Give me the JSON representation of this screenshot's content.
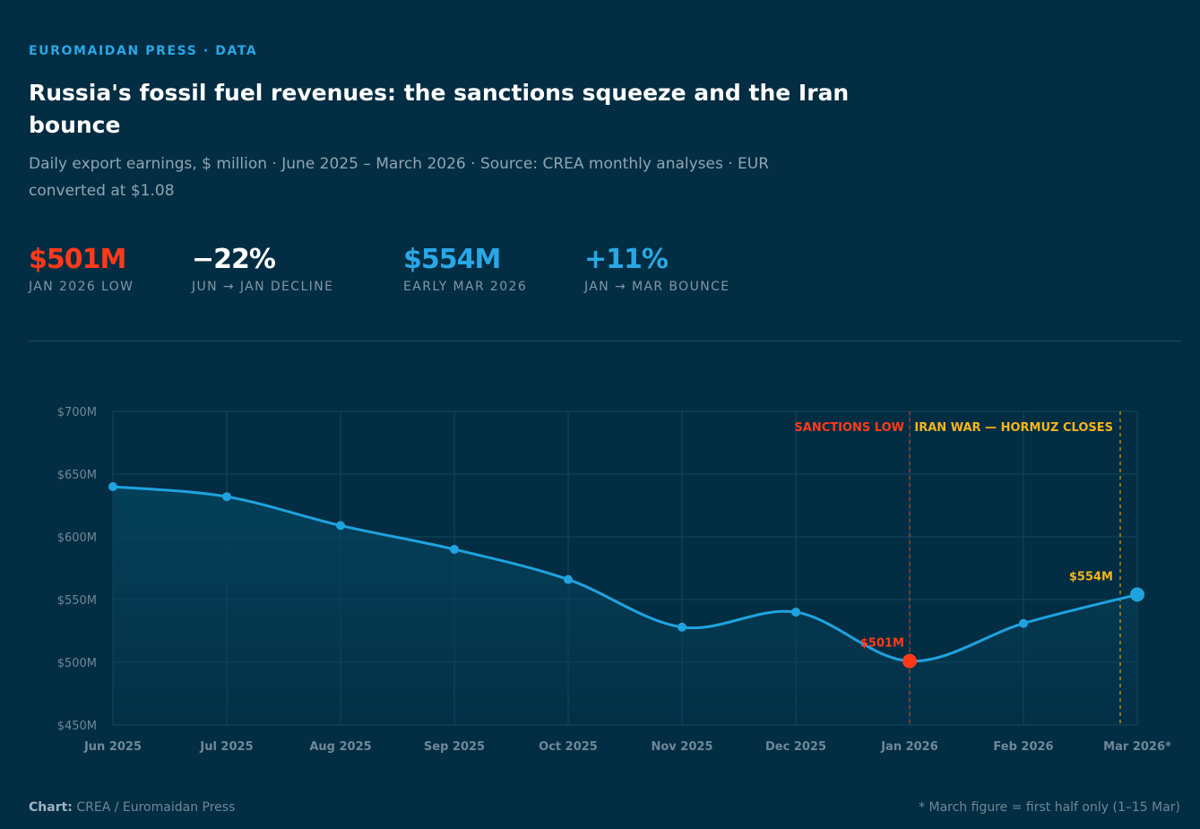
{
  "header": {
    "eyebrow": "EUROMAIDAN PRESS · DATA",
    "title": "Russia's fossil fuel revenues: the sanctions squeeze and the Iran bounce",
    "subtitle": "Daily export earnings, $ million · June 2025 – March 2026 · Source: CREA monthly analyses · EUR converted at $1.08"
  },
  "stats": [
    {
      "value": "$501M",
      "label": "JAN 2026 LOW",
      "color": "#ff3a1a"
    },
    {
      "value": "−22%",
      "label": "JUN → JAN DECLINE",
      "color": "#ffffff"
    },
    {
      "value": "$554M",
      "label": "EARLY MAR 2026",
      "color": "#2aa7e6"
    },
    {
      "value": "+11%",
      "label": "JAN → MAR BOUNCE",
      "color": "#2aa7e6"
    }
  ],
  "chart_data": {
    "type": "line",
    "categories": [
      "Jun 2025",
      "Jul 2025",
      "Aug 2025",
      "Sep 2025",
      "Oct 2025",
      "Nov 2025",
      "Dec 2025",
      "Jan 2026",
      "Feb 2026",
      "Mar 2026*"
    ],
    "series": [
      {
        "values": [
          640,
          632,
          609,
          590,
          566,
          528,
          540,
          501,
          531,
          554
        ]
      }
    ],
    "ylim": [
      450,
      700
    ],
    "yticks": [
      450,
      500,
      550,
      600,
      650,
      700
    ],
    "ytick_labels": [
      "$450M",
      "$500M",
      "$550M",
      "$600M",
      "$650M",
      "$700M"
    ],
    "grid": true,
    "annotations": [
      {
        "label": "SANCTIONS LOW",
        "category": "Jan 2026",
        "color": "#ff3a1a"
      },
      {
        "label": "IRAN WAR — HORMUZ CLOSES",
        "category": "Mar 2026*",
        "color": "#f5b51c"
      }
    ],
    "point_labels": [
      {
        "category": "Jan 2026",
        "text": "$501M",
        "color": "#ff3a1a"
      },
      {
        "category": "Mar 2026*",
        "text": "$554M",
        "color": "#f5b51c"
      }
    ],
    "colors": {
      "line": "#1fa3e0",
      "low": "#ff3a1a",
      "latest": "#1fa3e0",
      "grid": "#16475d",
      "area": "#04405a"
    }
  },
  "footer": {
    "credit_prefix": "Chart:",
    "credit": "CREA / Euromaidan Press",
    "note": "* March figure = first half only (1–15 Mar)"
  }
}
